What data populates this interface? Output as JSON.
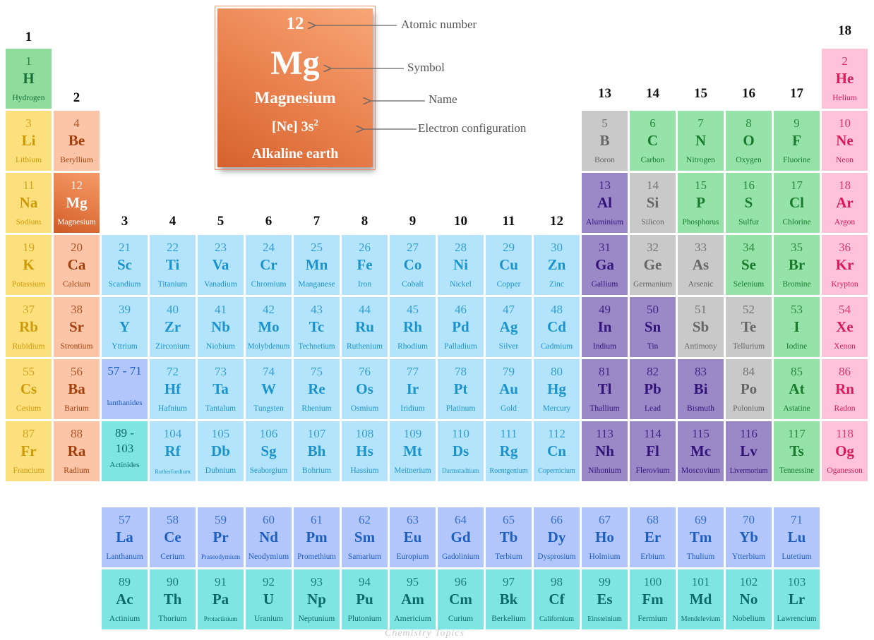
{
  "legend": {
    "number": 12,
    "symbol": "Mg",
    "name": "Magnesium",
    "configuration": "[Ne] 3s",
    "configuration_sup": "2",
    "category": "Alkaline earth"
  },
  "annotations": [
    "Atomic number",
    "Symbol",
    "Name",
    "Electron configuration"
  ],
  "groups": [
    1,
    2,
    3,
    4,
    5,
    6,
    7,
    8,
    9,
    10,
    11,
    12,
    13,
    14,
    15,
    16,
    17,
    18
  ],
  "placeholders": [
    {
      "range": "57 - 71",
      "label": "lanthanides",
      "color": "#b2c6fc"
    },
    {
      "range": "89 - 103",
      "label": "Actinides",
      "color": "#7fe5e3"
    }
  ],
  "watermark": "Chemistry Topics",
  "elements": [
    {
      "number": 1,
      "symbol": "H",
      "name": "Hydrogen",
      "color": "#8fdc9b"
    },
    {
      "number": 2,
      "symbol": "He",
      "name": "Helium",
      "color": "#ffc3d9"
    },
    {
      "number": 3,
      "symbol": "Li",
      "name": "Lithium",
      "color": "#fbe07d"
    },
    {
      "number": 4,
      "symbol": "Be",
      "name": "Beryllium",
      "color": "#fcc5a7"
    },
    {
      "number": 5,
      "symbol": "B",
      "name": "Boron",
      "color": "#c9c9c9"
    },
    {
      "number": 6,
      "symbol": "C",
      "name": "Carbon",
      "color": "#95e3a9"
    },
    {
      "number": 7,
      "symbol": "N",
      "name": "Nitrogen",
      "color": "#95e3a9"
    },
    {
      "number": 8,
      "symbol": "O",
      "name": "Oxygen",
      "color": "#95e3a9"
    },
    {
      "number": 9,
      "symbol": "F",
      "name": "Fluorine",
      "color": "#95e3a9"
    },
    {
      "number": 10,
      "symbol": "Ne",
      "name": "Neon",
      "color": "#ffc3d9"
    },
    {
      "number": 11,
      "symbol": "Na",
      "name": "Sodium",
      "color": "#fbe07d"
    },
    {
      "number": 12,
      "symbol": "Mg",
      "name": "Magnesium",
      "color": "#e47a45"
    },
    {
      "number": 13,
      "symbol": "Al",
      "name": "Aluminium",
      "color": "#9b89c7"
    },
    {
      "number": 14,
      "symbol": "Si",
      "name": "Silicon",
      "color": "#c9c9c9"
    },
    {
      "number": 15,
      "symbol": "P",
      "name": "Phosphorus",
      "color": "#95e3a9"
    },
    {
      "number": 16,
      "symbol": "S",
      "name": "Sulfur",
      "color": "#95e3a9"
    },
    {
      "number": 17,
      "symbol": "Cl",
      "name": "Chlorine",
      "color": "#95e3a9"
    },
    {
      "number": 18,
      "symbol": "Ar",
      "name": "Argon",
      "color": "#ffc3d9"
    },
    {
      "number": 19,
      "symbol": "K",
      "name": "Potassium",
      "color": "#fbe07d"
    },
    {
      "number": 20,
      "symbol": "Ca",
      "name": "Calcium",
      "color": "#fcc5a7"
    },
    {
      "number": 21,
      "symbol": "Sc",
      "name": "Scandium",
      "color": "#b4e4fb"
    },
    {
      "number": 22,
      "symbol": "Ti",
      "name": "Titanium",
      "color": "#b4e4fb"
    },
    {
      "number": 23,
      "symbol": "Va",
      "name": "Vanadium",
      "color": "#b4e4fb"
    },
    {
      "number": 24,
      "symbol": "Cr",
      "name": "Chromium",
      "color": "#b4e4fb"
    },
    {
      "number": 25,
      "symbol": "Mn",
      "name": "Manganese",
      "color": "#b4e4fb"
    },
    {
      "number": 26,
      "symbol": "Fe",
      "name": "Iron",
      "color": "#b4e4fb"
    },
    {
      "number": 27,
      "symbol": "Co",
      "name": "Cobalt",
      "color": "#b4e4fb"
    },
    {
      "number": 28,
      "symbol": "Ni",
      "name": "Nickel",
      "color": "#b4e4fb"
    },
    {
      "number": 29,
      "symbol": "Cu",
      "name": "Copper",
      "color": "#b4e4fb"
    },
    {
      "number": 30,
      "symbol": "Zn",
      "name": "Zinc",
      "color": "#b4e4fb"
    },
    {
      "number": 31,
      "symbol": "Ga",
      "name": "Gallium",
      "color": "#9b89c7"
    },
    {
      "number": 32,
      "symbol": "Ge",
      "name": "Germanium",
      "color": "#c9c9c9"
    },
    {
      "number": 33,
      "symbol": "As",
      "name": "Arsenic",
      "color": "#c9c9c9"
    },
    {
      "number": 34,
      "symbol": "Se",
      "name": "Selenium",
      "color": "#95e3a9"
    },
    {
      "number": 35,
      "symbol": "Br",
      "name": "Bromine",
      "color": "#95e3a9"
    },
    {
      "number": 36,
      "symbol": "Kr",
      "name": "Krypton",
      "color": "#ffc3d9"
    },
    {
      "number": 37,
      "symbol": "Rb",
      "name": "Rubidium",
      "color": "#fbe07d"
    },
    {
      "number": 38,
      "symbol": "Sr",
      "name": "Strontium",
      "color": "#fcc5a7"
    },
    {
      "number": 39,
      "symbol": "Y",
      "name": "Yttrium",
      "color": "#b4e4fb"
    },
    {
      "number": 40,
      "symbol": "Zr",
      "name": "Zirconium",
      "color": "#b4e4fb"
    },
    {
      "number": 41,
      "symbol": "Nb",
      "name": "Niobium",
      "color": "#b4e4fb"
    },
    {
      "number": 42,
      "symbol": "Mo",
      "name": "Molybdenum",
      "color": "#b4e4fb"
    },
    {
      "number": 43,
      "symbol": "Tc",
      "name": "Technetium",
      "color": "#b4e4fb"
    },
    {
      "number": 44,
      "symbol": "Ru",
      "name": "Ruthenium",
      "color": "#b4e4fb"
    },
    {
      "number": 45,
      "symbol": "Rh",
      "name": "Rhodium",
      "color": "#b4e4fb"
    },
    {
      "number": 46,
      "symbol": "Pd",
      "name": "Palladium",
      "color": "#b4e4fb"
    },
    {
      "number": 47,
      "symbol": "Ag",
      "name": "Silver",
      "color": "#b4e4fb"
    },
    {
      "number": 48,
      "symbol": "Cd",
      "name": "Cadmium",
      "color": "#b4e4fb"
    },
    {
      "number": 49,
      "symbol": "In",
      "name": "Indium",
      "color": "#9b89c7"
    },
    {
      "number": 50,
      "symbol": "Sn",
      "name": "Tin",
      "color": "#9b89c7"
    },
    {
      "number": 51,
      "symbol": "Sb",
      "name": "Antimony",
      "color": "#c9c9c9"
    },
    {
      "number": 52,
      "symbol": "Te",
      "name": "Tellurium",
      "color": "#c9c9c9"
    },
    {
      "number": 53,
      "symbol": "I",
      "name": "Iodine",
      "color": "#95e3a9"
    },
    {
      "number": 54,
      "symbol": "Xe",
      "name": "Xenon",
      "color": "#ffc3d9"
    },
    {
      "number": 55,
      "symbol": "Cs",
      "name": "Cesium",
      "color": "#fbe07d"
    },
    {
      "number": 56,
      "symbol": "Ba",
      "name": "Barium",
      "color": "#fcc5a7"
    },
    {
      "number": 57,
      "symbol": "La",
      "name": "Lanthanum",
      "color": "#b2c6fc"
    },
    {
      "number": 58,
      "symbol": "Ce",
      "name": "Cerium",
      "color": "#b2c6fc"
    },
    {
      "number": 59,
      "symbol": "Pr",
      "name": "Praseodymium",
      "color": "#b2c6fc"
    },
    {
      "number": 60,
      "symbol": "Nd",
      "name": "Neodymium",
      "color": "#b2c6fc"
    },
    {
      "number": 61,
      "symbol": "Pm",
      "name": "Promethium",
      "color": "#b2c6fc"
    },
    {
      "number": 62,
      "symbol": "Sm",
      "name": "Samarium",
      "color": "#b2c6fc"
    },
    {
      "number": 63,
      "symbol": "Eu",
      "name": "Europium",
      "color": "#b2c6fc"
    },
    {
      "number": 64,
      "symbol": "Gd",
      "name": "Gadolinium",
      "color": "#b2c6fc"
    },
    {
      "number": 65,
      "symbol": "Tb",
      "name": "Terbium",
      "color": "#b2c6fc"
    },
    {
      "number": 66,
      "symbol": "Dy",
      "name": "Dysprosium",
      "color": "#b2c6fc"
    },
    {
      "number": 67,
      "symbol": "Ho",
      "name": "Holmium",
      "color": "#b2c6fc"
    },
    {
      "number": 68,
      "symbol": "Er",
      "name": "Erbium",
      "color": "#b2c6fc"
    },
    {
      "number": 69,
      "symbol": "Tm",
      "name": "Thulium",
      "color": "#b2c6fc"
    },
    {
      "number": 70,
      "symbol": "Yb",
      "name": "Ytterbium",
      "color": "#b2c6fc"
    },
    {
      "number": 71,
      "symbol": "Lu",
      "name": "Lutetium",
      "color": "#b2c6fc"
    },
    {
      "number": 72,
      "symbol": "Hf",
      "name": "Hafnium",
      "color": "#b4e4fb"
    },
    {
      "number": 73,
      "symbol": "Ta",
      "name": "Tantalum",
      "color": "#b4e4fb"
    },
    {
      "number": 74,
      "symbol": "W",
      "name": "Tungsten",
      "color": "#b4e4fb"
    },
    {
      "number": 75,
      "symbol": "Re",
      "name": "Rhenium",
      "color": "#b4e4fb"
    },
    {
      "number": 76,
      "symbol": "Os",
      "name": "Osmium",
      "color": "#b4e4fb"
    },
    {
      "number": 77,
      "symbol": "Ir",
      "name": "Iridium",
      "color": "#b4e4fb"
    },
    {
      "number": 78,
      "symbol": "Pt",
      "name": "Platinum",
      "color": "#b4e4fb"
    },
    {
      "number": 79,
      "symbol": "Au",
      "name": "Gold",
      "color": "#b4e4fb"
    },
    {
      "number": 80,
      "symbol": "Hg",
      "name": "Mercury",
      "color": "#b4e4fb"
    },
    {
      "number": 81,
      "symbol": "Tl",
      "name": "Thallium",
      "color": "#9b89c7"
    },
    {
      "number": 82,
      "symbol": "Pb",
      "name": "Lead",
      "color": "#9b89c7"
    },
    {
      "number": 83,
      "symbol": "Bi",
      "name": "Bismuth",
      "color": "#9b89c7"
    },
    {
      "number": 84,
      "symbol": "Po",
      "name": "Polonium",
      "color": "#c9c9c9"
    },
    {
      "number": 85,
      "symbol": "At",
      "name": "Astatine",
      "color": "#95e3a9"
    },
    {
      "number": 86,
      "symbol": "Rn",
      "name": "Radon",
      "color": "#ffc3d9"
    },
    {
      "number": 87,
      "symbol": "Fr",
      "name": "Francium",
      "color": "#fbe07d"
    },
    {
      "number": 88,
      "symbol": "Ra",
      "name": "Radium",
      "color": "#fcc5a7"
    },
    {
      "number": 89,
      "symbol": "Ac",
      "name": "Actinium",
      "color": "#7fe5e3"
    },
    {
      "number": 90,
      "symbol": "Th",
      "name": "Thorium",
      "color": "#7fe5e3"
    },
    {
      "number": 91,
      "symbol": "Pa",
      "name": "Protactinium",
      "color": "#7fe5e3"
    },
    {
      "number": 92,
      "symbol": "U",
      "name": "Uranium",
      "color": "#7fe5e3"
    },
    {
      "number": 93,
      "symbol": "Np",
      "name": "Neptunium",
      "color": "#7fe5e3"
    },
    {
      "number": 94,
      "symbol": "Pu",
      "name": "Plutonium",
      "color": "#7fe5e3"
    },
    {
      "number": 95,
      "symbol": "Am",
      "name": "Americium",
      "color": "#7fe5e3"
    },
    {
      "number": 96,
      "symbol": "Cm",
      "name": "Curium",
      "color": "#7fe5e3"
    },
    {
      "number": 97,
      "symbol": "Bk",
      "name": "Berkelium",
      "color": "#7fe5e3"
    },
    {
      "number": 98,
      "symbol": "Cf",
      "name": "Californium",
      "color": "#7fe5e3"
    },
    {
      "number": 99,
      "symbol": "Es",
      "name": "Einsteinium",
      "color": "#7fe5e3"
    },
    {
      "number": 100,
      "symbol": "Fm",
      "name": "Fermium",
      "color": "#7fe5e3"
    },
    {
      "number": 101,
      "symbol": "Md",
      "name": "Mendelevium",
      "color": "#7fe5e3"
    },
    {
      "number": 102,
      "symbol": "No",
      "name": "Nobelium",
      "color": "#7fe5e3"
    },
    {
      "number": 103,
      "symbol": "Lr",
      "name": "Lawrencium",
      "color": "#7fe5e3"
    },
    {
      "number": 104,
      "symbol": "Rf",
      "name": "Rutherfordium",
      "color": "#b4e4fb"
    },
    {
      "number": 105,
      "symbol": "Db",
      "name": "Dubnium",
      "color": "#b4e4fb"
    },
    {
      "number": 106,
      "symbol": "Sg",
      "name": "Seaborgium",
      "color": "#b4e4fb"
    },
    {
      "number": 107,
      "symbol": "Bh",
      "name": "Bohrium",
      "color": "#b4e4fb"
    },
    {
      "number": 108,
      "symbol": "Hs",
      "name": "Hassium",
      "color": "#b4e4fb"
    },
    {
      "number": 109,
      "symbol": "Mt",
      "name": "Meitnerium",
      "color": "#b4e4fb"
    },
    {
      "number": 110,
      "symbol": "Ds",
      "name": "Darmstadtium",
      "color": "#b4e4fb"
    },
    {
      "number": 111,
      "symbol": "Rg",
      "name": "Roentgenium",
      "color": "#b4e4fb"
    },
    {
      "number": 112,
      "symbol": "Cn",
      "name": "Copernicium",
      "color": "#b4e4fb"
    },
    {
      "number": 113,
      "symbol": "Nh",
      "name": "Nihonium",
      "color": "#9b89c7"
    },
    {
      "number": 114,
      "symbol": "Fl",
      "name": "Flerovium",
      "color": "#9b89c7"
    },
    {
      "number": 115,
      "symbol": "Mc",
      "name": "Moscovium",
      "color": "#9b89c7"
    },
    {
      "number": 116,
      "symbol": "Lv",
      "name": "Livermorium",
      "color": "#9b89c7"
    },
    {
      "number": 117,
      "symbol": "Ts",
      "name": "Tennessine",
      "color": "#95e3a9"
    },
    {
      "number": 118,
      "symbol": "Og",
      "name": "Oganesson",
      "color": "#ffc3d9"
    }
  ]
}
